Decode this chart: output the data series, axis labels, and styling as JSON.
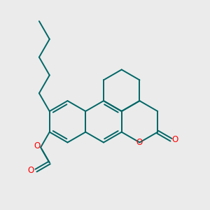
{
  "background_color": "#ebebeb",
  "bond_color": "#006666",
  "heteroatom_color": "#ff0000",
  "line_width": 1.4,
  "figsize": [
    3.0,
    3.0
  ],
  "dpi": 100,
  "xlim": [
    0,
    10
  ],
  "ylim": [
    0,
    10
  ]
}
